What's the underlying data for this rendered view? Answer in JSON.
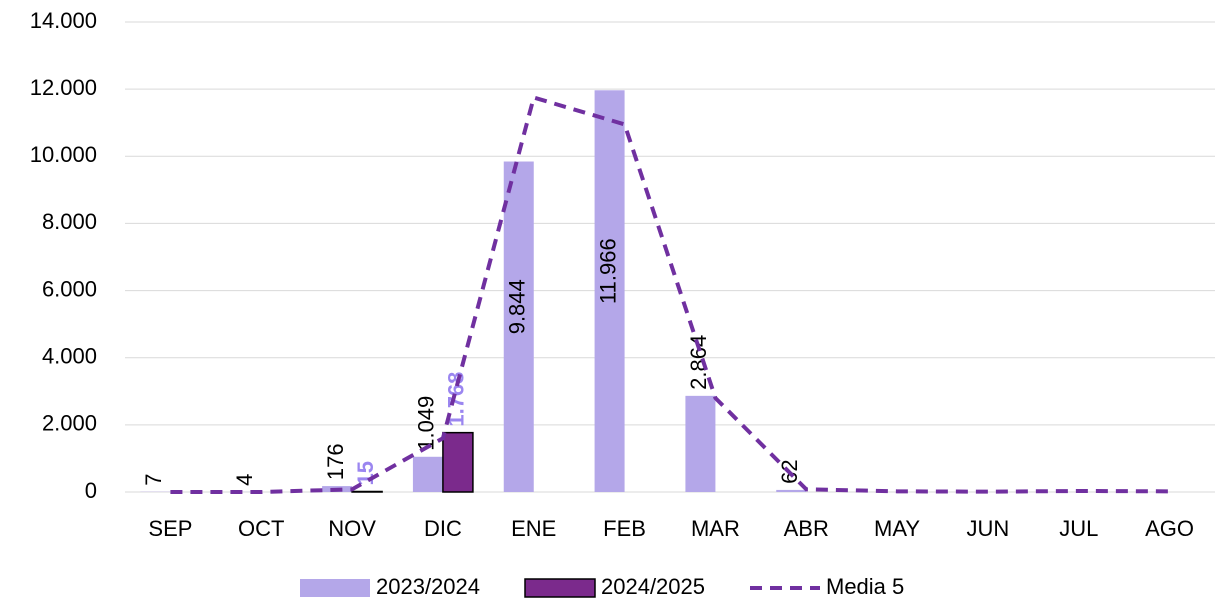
{
  "chart_data": {
    "type": "bar",
    "categories": [
      "SEP",
      "OCT",
      "NOV",
      "DIC",
      "ENE",
      "FEB",
      "MAR",
      "ABR",
      "MAY",
      "JUN",
      "JUL",
      "AGO"
    ],
    "series": [
      {
        "name": "2023/2024",
        "type": "bar",
        "color": "#b4a7e9",
        "values": [
          7,
          4,
          176,
          1049,
          9844,
          11966,
          2864,
          62,
          null,
          null,
          null,
          null
        ],
        "value_labels": [
          "7",
          "4",
          "176",
          "1.049",
          "9.844",
          "11.966",
          "2.864",
          "62",
          null,
          null,
          null,
          null
        ],
        "label_color": "#000000"
      },
      {
        "name": "2024/2025",
        "type": "bar",
        "color": "#7b2a8c",
        "values": [
          null,
          null,
          15,
          1768,
          null,
          null,
          null,
          null,
          null,
          null,
          null,
          null
        ],
        "value_labels": [
          null,
          null,
          "15",
          "1.768",
          null,
          null,
          null,
          null,
          null,
          null,
          null,
          null
        ],
        "label_color": "#9b86f0"
      },
      {
        "name": "Media 5",
        "type": "line",
        "color": "#7030a0",
        "values": [
          0,
          0,
          80,
          1600,
          11750,
          10950,
          2800,
          80,
          20,
          10,
          30,
          20
        ]
      }
    ],
    "ylim": [
      0,
      14000
    ],
    "yticks": [
      0,
      {
        "value": 2000,
        "label": "2.000"
      },
      {
        "value": 4000,
        "label": "4.000"
      },
      {
        "value": 6000,
        "label": "6.000"
      },
      {
        "value": 8000,
        "label": "8.000"
      },
      {
        "value": 10000,
        "label": "10.000"
      },
      {
        "value": 12000,
        "label": "12.000"
      },
      {
        "value": 14000,
        "label": "14.000"
      }
    ],
    "grid": true,
    "legend": "bottom"
  }
}
